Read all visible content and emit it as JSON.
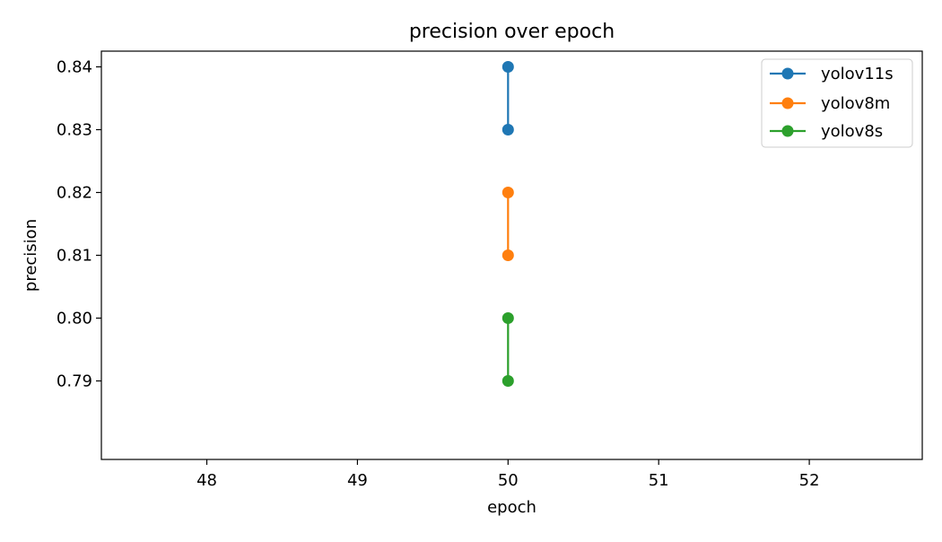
{
  "chart_data": {
    "type": "line",
    "title": "precision over epoch",
    "xlabel": "epoch",
    "ylabel": "precision",
    "xlim": [
      47.3,
      52.75
    ],
    "ylim": [
      0.7775,
      0.8425
    ],
    "xticks": [
      48,
      49,
      50,
      51,
      52
    ],
    "xtick_labels": [
      "48",
      "49",
      "50",
      "51",
      "52"
    ],
    "yticks": [
      0.79,
      0.8,
      0.81,
      0.82,
      0.83,
      0.84
    ],
    "ytick_labels": [
      "0.79",
      "0.80",
      "0.81",
      "0.82",
      "0.83",
      "0.84"
    ],
    "grid": false,
    "legend": {
      "position": "top-right"
    },
    "series": [
      {
        "name": "yolov11s",
        "color": "#1f77b4",
        "x": [
          50,
          50
        ],
        "y": [
          0.83,
          0.84
        ]
      },
      {
        "name": "yolov8m",
        "color": "#ff7f0e",
        "x": [
          50,
          50
        ],
        "y": [
          0.81,
          0.82
        ]
      },
      {
        "name": "yolov8s",
        "color": "#2ca02c",
        "x": [
          50,
          50
        ],
        "y": [
          0.79,
          0.8
        ]
      }
    ]
  }
}
